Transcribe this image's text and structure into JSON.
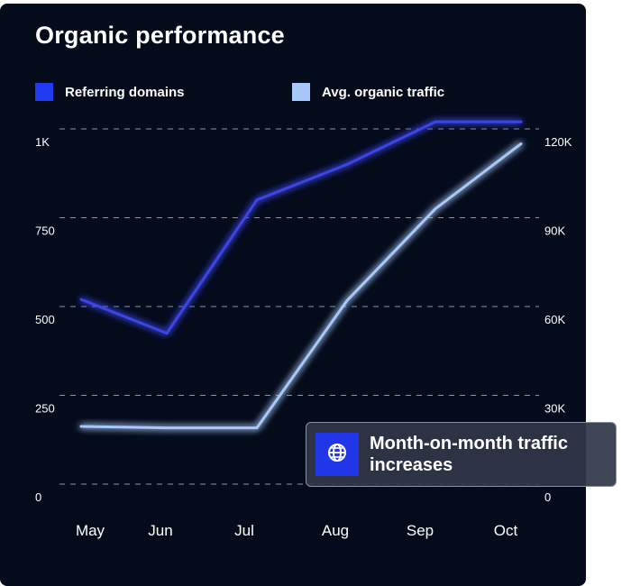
{
  "title": "Organic performance",
  "chart_data": {
    "type": "line",
    "title": "Organic performance",
    "categories": [
      "May",
      "Jun",
      "Jul",
      "Aug",
      "Sep",
      "Oct"
    ],
    "y_left": {
      "ticks": [
        "0",
        "250",
        "500",
        "750",
        "1K"
      ],
      "tick_values": [
        0,
        250,
        500,
        750,
        1000
      ],
      "ylim": [
        0,
        1000
      ]
    },
    "y_right": {
      "ticks": [
        "0",
        "30K",
        "60K",
        "90K",
        "120K"
      ],
      "tick_values": [
        0,
        30000,
        60000,
        90000,
        120000
      ],
      "ylim": [
        0,
        120000
      ]
    },
    "grid": true,
    "legend_placement": "top",
    "series": [
      {
        "name": "Referring domains",
        "axis": "left",
        "color": "#3d45e6",
        "values": [
          520,
          425,
          800,
          900,
          1020,
          1020
        ]
      },
      {
        "name": "Avg. organic traffic",
        "axis": "right",
        "color": "#a8c8f8",
        "values": [
          19500,
          19000,
          19000,
          62000,
          93000,
          115000
        ]
      }
    ]
  },
  "legend": [
    {
      "label": "Referring domains",
      "color": "#1f3af0"
    },
    {
      "label": "Avg. organic traffic",
      "color": "#a8c8f8"
    }
  ],
  "tooltip": {
    "text": "Month-on-month traffic increases",
    "icon": "globe-icon",
    "icon_bg": "#2036e8"
  }
}
